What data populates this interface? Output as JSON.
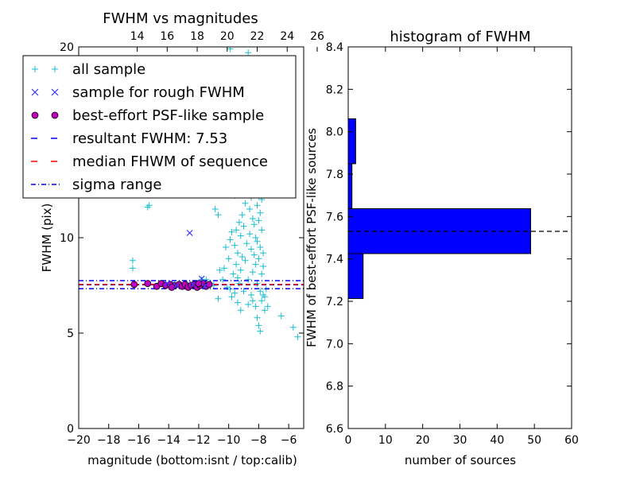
{
  "chart_data": [
    {
      "type": "scatter",
      "title": "FWHM vs magnitudes",
      "xlabel": "magnitude (bottom:isnt / top:calib)",
      "ylabel": "FWHM (pix)",
      "xlim": [
        -20,
        -5
      ],
      "ylim": [
        0,
        20
      ],
      "x_ticks": [
        -20,
        -18,
        -16,
        -14,
        -12,
        -10,
        -8,
        -6
      ],
      "x_tick_labels": [
        "−20",
        "−18",
        "−16",
        "−14",
        "−12",
        "−10",
        "−8",
        "−6"
      ],
      "y_ticks": [
        0,
        5,
        10,
        20
      ],
      "y_tick_labels": [
        "0",
        "5",
        "10",
        "20"
      ],
      "top_axis": {
        "ticks": [
          14,
          16,
          18,
          20,
          22,
          24,
          26
        ],
        "tick_labels": [
          "14",
          "16",
          "18",
          "20",
          "22",
          "24",
          "26"
        ],
        "offset": 30.1
      },
      "legend": {
        "placement": "upper-left",
        "entries": [
          {
            "label": "all sample",
            "marker": "+",
            "color": "#17becf"
          },
          {
            "label": "sample for rough FWHM",
            "marker": "x",
            "color": "#3333ff"
          },
          {
            "label": "best-effort PSF-like sample",
            "marker": "o",
            "color": "#bf00bf"
          },
          {
            "label": "resultant FWHM: 7.53",
            "line": "dashed",
            "color": "#0000ff"
          },
          {
            "label": "median FHWM of sequence",
            "line": "dashed",
            "color": "#ff0000"
          },
          {
            "label": "sigma range",
            "line": "dashdot",
            "color": "#0000ff"
          }
        ]
      },
      "series": [
        {
          "name": "all sample",
          "points": [
            [
              -16.4,
              8.8
            ],
            [
              -16.4,
              8.4
            ],
            [
              -15.4,
              11.6
            ],
            [
              -15.3,
              11.7
            ],
            [
              -12.4,
              12.8
            ],
            [
              -12.8,
              7.6
            ],
            [
              -12.2,
              7.6
            ],
            [
              -11.8,
              7.8
            ],
            [
              -11.5,
              7.8
            ],
            [
              -11.2,
              7.6
            ],
            [
              -11.0,
              7.5
            ],
            [
              -10.9,
              11.5
            ],
            [
              -10.7,
              11.2
            ],
            [
              -10.4,
              7.8
            ],
            [
              -10.3,
              8.4
            ],
            [
              -10.2,
              9.5
            ],
            [
              -10.1,
              7.4
            ],
            [
              -10.0,
              8.9
            ],
            [
              -9.9,
              9.9
            ],
            [
              -9.9,
              7.3
            ],
            [
              -9.8,
              10.3
            ],
            [
              -9.7,
              8.1
            ],
            [
              -9.6,
              9.6
            ],
            [
              -9.6,
              7.1
            ],
            [
              -9.5,
              10.4
            ],
            [
              -9.5,
              8.6
            ],
            [
              -9.4,
              7.9
            ],
            [
              -9.4,
              9.2
            ],
            [
              -9.3,
              10.8
            ],
            [
              -9.3,
              7.6
            ],
            [
              -9.2,
              10.1
            ],
            [
              -9.2,
              8.3
            ],
            [
              -9.1,
              9.0
            ],
            [
              -9.1,
              11.2
            ],
            [
              -9.0,
              7.2
            ],
            [
              -9.0,
              10.6
            ],
            [
              -8.9,
              11.8
            ],
            [
              -8.9,
              8.8
            ],
            [
              -8.8,
              12.6
            ],
            [
              -8.8,
              9.7
            ],
            [
              -8.7,
              13.2
            ],
            [
              -8.7,
              7.8
            ],
            [
              -8.6,
              11.5
            ],
            [
              -8.6,
              10.2
            ],
            [
              -8.5,
              12.1
            ],
            [
              -8.5,
              9.4
            ],
            [
              -8.5,
              13.8
            ],
            [
              -8.4,
              8.2
            ],
            [
              -8.4,
              11.0
            ],
            [
              -8.4,
              12.9
            ],
            [
              -8.3,
              10.7
            ],
            [
              -8.3,
              9.1
            ],
            [
              -8.3,
              12.4
            ],
            [
              -8.2,
              13.5
            ],
            [
              -8.2,
              8.6
            ],
            [
              -8.2,
              10.0
            ],
            [
              -8.1,
              11.7
            ],
            [
              -8.1,
              9.8
            ],
            [
              -8.1,
              7.6
            ],
            [
              -8.0,
              10.9
            ],
            [
              -8.0,
              12.2
            ],
            [
              -8.0,
              8.9
            ],
            [
              -7.9,
              9.5
            ],
            [
              -7.9,
              7.2
            ],
            [
              -7.9,
              11.3
            ],
            [
              -7.8,
              8.1
            ],
            [
              -7.8,
              6.7
            ],
            [
              -7.8,
              10.4
            ],
            [
              -7.7,
              7.0
            ],
            [
              -7.7,
              8.5
            ],
            [
              -7.6,
              6.9
            ],
            [
              -7.6,
              6.2
            ],
            [
              -7.5,
              7.3
            ],
            [
              -7.7,
              9.2
            ],
            [
              -7.8,
              12.0
            ],
            [
              -8.0,
              14.3
            ],
            [
              -8.1,
              13.9
            ],
            [
              -8.3,
              14.0
            ],
            [
              -8.6,
              14.1
            ],
            [
              -8.9,
              14.4
            ],
            [
              -9.0,
              14.0
            ],
            [
              -8.2,
              6.4
            ],
            [
              -8.0,
              5.4
            ],
            [
              -7.9,
              5.1
            ],
            [
              -8.1,
              5.8
            ],
            [
              -8.4,
              6.7
            ],
            [
              -9.4,
              6.6
            ],
            [
              -9.8,
              6.9
            ],
            [
              -10.7,
              6.8
            ],
            [
              -7.4,
              6.4
            ],
            [
              -9.2,
              6.2
            ],
            [
              -8.7,
              6.5
            ],
            [
              -8.5,
              7.0
            ],
            [
              -9.6,
              12.2
            ],
            [
              -9.9,
              13.1
            ],
            [
              -10.1,
              12.6
            ],
            [
              -10.6,
              8.3
            ],
            [
              -8.7,
              19.7
            ],
            [
              -9.9,
              19.9
            ],
            [
              -5.4,
              4.8
            ],
            [
              -5.7,
              5.3
            ],
            [
              -6.5,
              5.9
            ],
            [
              -8.4,
              15.4
            ],
            [
              -8.6,
              16.8
            ],
            [
              -9.3,
              17.2
            ],
            [
              -10.6,
              18.3
            ]
          ]
        },
        {
          "name": "sample for rough FWHM",
          "points": [
            [
              -12.6,
              10.25
            ],
            [
              -11.8,
              7.85
            ],
            [
              -12.4,
              7.55
            ],
            [
              -13.5,
              7.5
            ],
            [
              -14.1,
              7.6
            ],
            [
              -11.6,
              7.45
            ]
          ]
        },
        {
          "name": "best-effort PSF-like sample",
          "points": [
            [
              -16.3,
              7.55
            ],
            [
              -15.4,
              7.6
            ],
            [
              -14.8,
              7.45
            ],
            [
              -14.5,
              7.6
            ],
            [
              -14.2,
              7.5
            ],
            [
              -13.9,
              7.55
            ],
            [
              -13.6,
              7.5
            ],
            [
              -13.3,
              7.55
            ],
            [
              -13.1,
              7.45
            ],
            [
              -12.9,
              7.55
            ],
            [
              -12.7,
              7.4
            ],
            [
              -12.5,
              7.5
            ],
            [
              -12.3,
              7.55
            ],
            [
              -12.1,
              7.4
            ],
            [
              -11.9,
              7.5
            ],
            [
              -11.7,
              7.6
            ],
            [
              -11.5,
              7.45
            ],
            [
              -11.3,
              7.55
            ],
            [
              -13.8,
              7.4
            ],
            [
              -12.0,
              7.6
            ]
          ]
        }
      ],
      "lines": {
        "resultant_fwhm": 7.53,
        "median_fwhm": 7.55,
        "sigma_range": [
          7.33,
          7.75
        ]
      }
    },
    {
      "type": "bar",
      "orientation": "horizontal",
      "title": "histogram of FWHM",
      "xlabel": "number of sources",
      "ylabel": "FWHM of best-effort PSF-like sources",
      "xlim": [
        0,
        60
      ],
      "ylim": [
        6.6,
        8.4
      ],
      "x_ticks": [
        0,
        10,
        20,
        30,
        40,
        50,
        60
      ],
      "y_ticks": [
        6.6,
        6.8,
        7.0,
        7.2,
        7.4,
        7.6,
        7.8,
        8.0,
        8.2,
        8.4
      ],
      "y_tick_labels": [
        "6.6",
        "6.8",
        "7.0",
        "7.2",
        "7.4",
        "7.6",
        "7.8",
        "8.0",
        "8.2",
        "8.4"
      ],
      "bar_color": "#0000ff",
      "bins": [
        {
          "from": 7.213,
          "to": 7.425,
          "count": 4
        },
        {
          "from": 7.425,
          "to": 7.637,
          "count": 49
        },
        {
          "from": 7.637,
          "to": 7.849,
          "count": 1
        },
        {
          "from": 7.849,
          "to": 8.061,
          "count": 2
        },
        {
          "from": 8.061,
          "to": 8.273,
          "count": 0
        }
      ],
      "reference_line": 7.53
    }
  ]
}
